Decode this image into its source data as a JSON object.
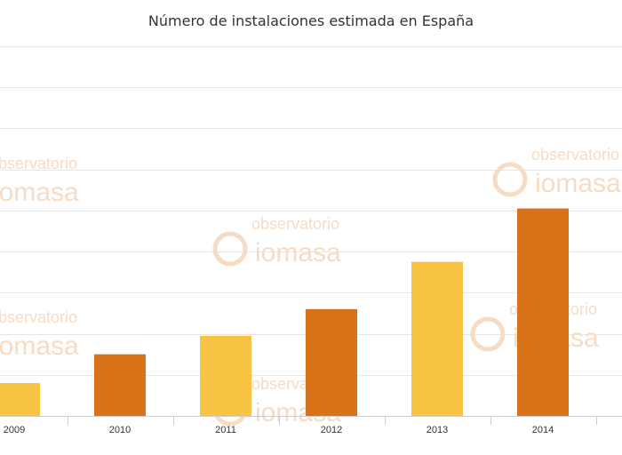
{
  "chart_data": {
    "type": "bar",
    "title": "Número de instalaciones estimada en España",
    "categories": [
      "2009",
      "2010",
      "2011",
      "2012",
      "2013",
      "2014"
    ],
    "values": [
      8,
      15,
      19.5,
      26,
      37.5,
      50.5
    ],
    "colors": [
      "#f9c344",
      "#d87319",
      "#f9c344",
      "#d87319",
      "#f9c344",
      "#d87319"
    ],
    "ylim": [
      0,
      90
    ],
    "grid": true,
    "legend": "none",
    "xlabel": "",
    "ylabel": ""
  },
  "watermark": {
    "line1": "observatorio",
    "line2": "iomasa",
    "icon": "biomasa-b-logo-icon",
    "color": "#f6dcc4"
  },
  "colors": {
    "grid": "#e6e6e6",
    "axis": "#cccccc",
    "text": "#333333"
  }
}
